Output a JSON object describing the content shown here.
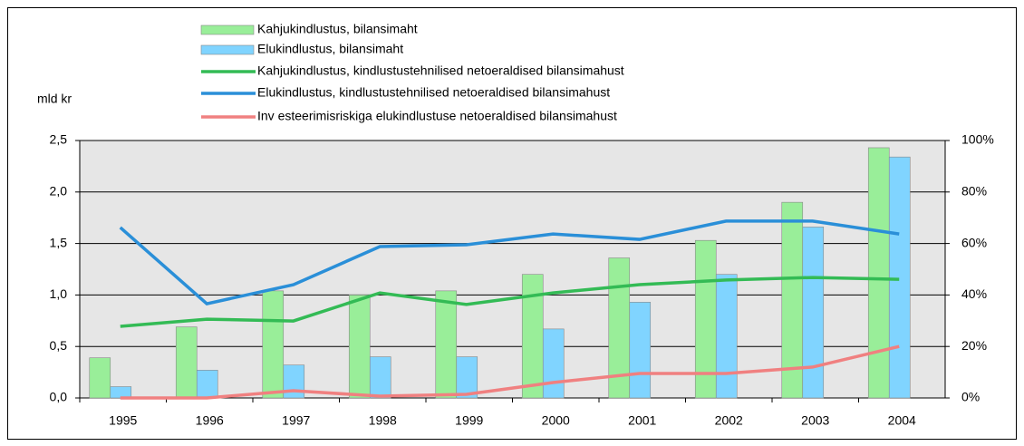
{
  "chart_data": {
    "type": "bar",
    "y_label": "mld kr",
    "categories": [
      "1995",
      "1996",
      "1997",
      "1998",
      "1999",
      "2000",
      "2001",
      "2002",
      "2003",
      "2004"
    ],
    "series": [
      {
        "name": "Kahjukindlustus, bilansimaht",
        "type": "bar",
        "color": "#99ee99",
        "values": [
          0.39,
          0.69,
          1.04,
          1.0,
          1.04,
          1.2,
          1.36,
          1.53,
          1.9,
          2.43
        ]
      },
      {
        "name": "Elukindlustus, bilansimaht",
        "type": "bar",
        "color": "#80d4ff",
        "values": [
          0.11,
          0.27,
          0.32,
          0.4,
          0.4,
          0.67,
          0.93,
          1.2,
          1.66,
          2.34
        ]
      },
      {
        "name": "Kahjukindlustus, kindlustustehnilised netoeraldised bilansimahust",
        "type": "line",
        "axis": "y2",
        "color": "#33bb55",
        "values": [
          27.8,
          30.6,
          29.9,
          40.8,
          36.3,
          40.8,
          44,
          45.8,
          46.8,
          46.1
        ]
      },
      {
        "name": "Elukindlustus, kindlustustehnilised netoeraldised bilansimahust",
        "type": "line",
        "axis": "y2",
        "color": "#2a8fd8",
        "values": [
          66.2,
          36.6,
          44,
          58.8,
          59.5,
          63.7,
          61.6,
          68.7,
          68.7,
          63.7
        ]
      },
      {
        "name": "Inv esteerimisriskiga elukindlustuse netoeraldised bilansimahust",
        "type": "line",
        "axis": "y2",
        "color": "#f08080",
        "values": [
          0,
          0,
          2.8,
          0.7,
          1.4,
          6,
          9.5,
          9.5,
          12,
          20
        ]
      }
    ],
    "ylim": [
      0,
      2.5
    ],
    "yticks": [
      {
        "value": 0,
        "label": "0,0"
      },
      {
        "value": 0.5,
        "label": "0,5"
      },
      {
        "value": 1,
        "label": "1,0"
      },
      {
        "value": 1.5,
        "label": "1,5"
      },
      {
        "value": 2,
        "label": "2,0"
      },
      {
        "value": 2.5,
        "label": "2,5"
      }
    ],
    "y2lim": [
      0,
      100
    ],
    "y2ticks": [
      {
        "value": 0,
        "label": "0%"
      },
      {
        "value": 20,
        "label": "20%"
      },
      {
        "value": 40,
        "label": "40%"
      },
      {
        "value": 60,
        "label": "60%"
      },
      {
        "value": 80,
        "label": "80%"
      },
      {
        "value": 100,
        "label": "100%"
      }
    ],
    "grid": true
  }
}
